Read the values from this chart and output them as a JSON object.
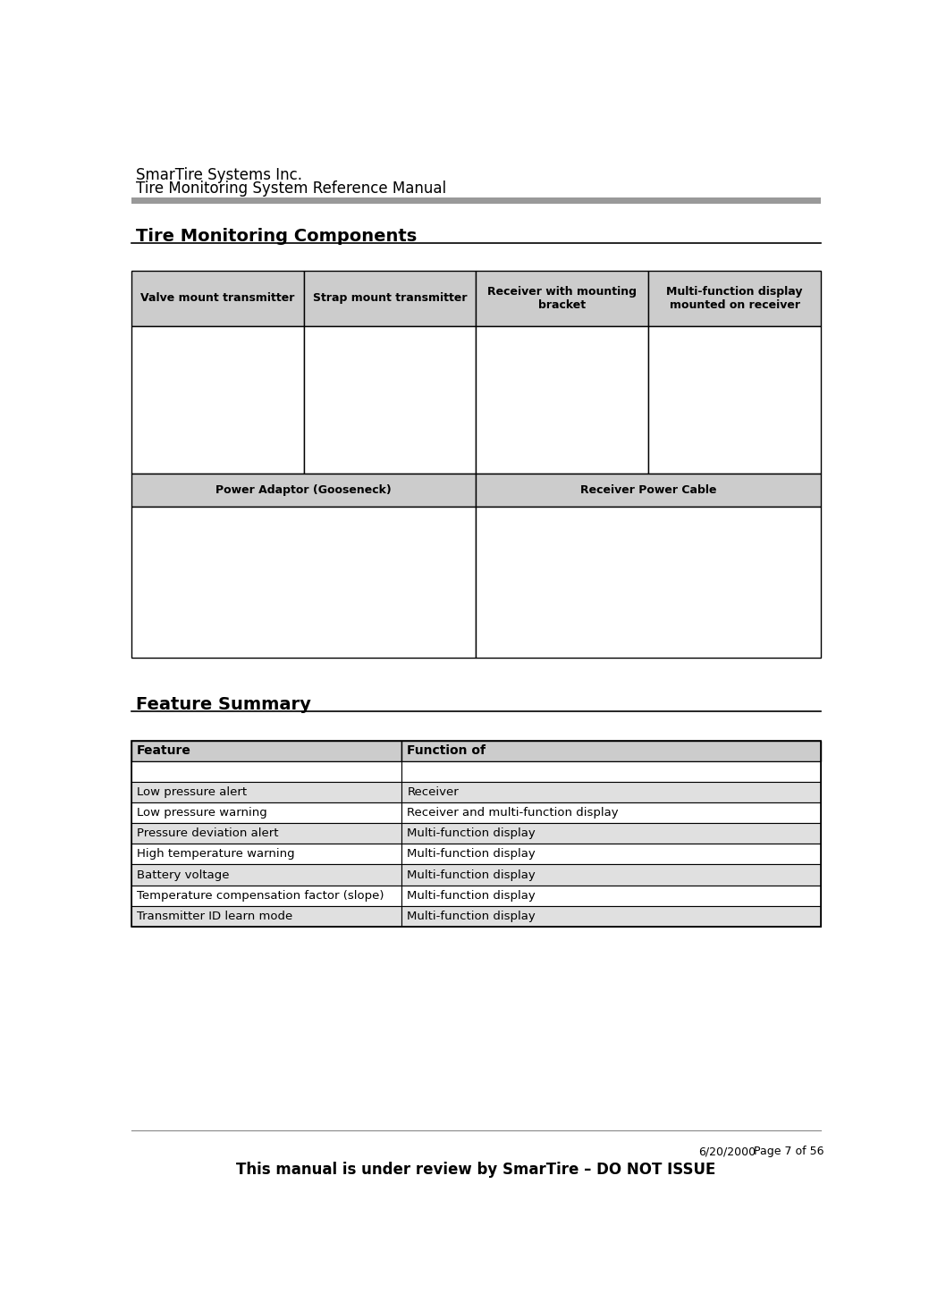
{
  "header_line1": "SmarTire Systems Inc.",
  "header_line2": "Tire Monitoring System Reference Manual",
  "header_font_size": 12,
  "section1_title": "Tire Monitoring Components",
  "section2_title": "Feature Summary",
  "table1_headers": [
    "Valve mount transmitter",
    "Strap mount transmitter",
    "Receiver with mounting\nbracket",
    "Multi-function display\nmounted on receiver"
  ],
  "table1_row2_labels": [
    "Power Adaptor (Gooseneck)",
    "Receiver Power Cable"
  ],
  "table2_headers": [
    "Feature",
    "Function of"
  ],
  "table2_rows": [
    [
      "",
      ""
    ],
    [
      "Low pressure alert",
      "Receiver"
    ],
    [
      "Low pressure warning",
      "Receiver and multi-function display"
    ],
    [
      "Pressure deviation alert",
      "Multi-function display"
    ],
    [
      "High temperature warning",
      "Multi-function display"
    ],
    [
      "Battery voltage",
      "Multi-function display"
    ],
    [
      "Temperature compensation factor (slope)",
      "Multi-function display"
    ],
    [
      "Transmitter ID learn mode",
      "Multi-function display"
    ]
  ],
  "table2_row_shaded": [
    false,
    true,
    false,
    true,
    false,
    true,
    false,
    true
  ],
  "footer_date": "6/20/2000",
  "footer_page": "Page 7 of 56",
  "footer_notice": "This manual is under review by SmarTire – DO NOT ISSUE",
  "bg_color": "#ffffff",
  "header_bar_color": "#999999",
  "table_header_bg": "#cccccc",
  "table_row_shaded_bg": "#e0e0e0",
  "table_border_color": "#000000"
}
